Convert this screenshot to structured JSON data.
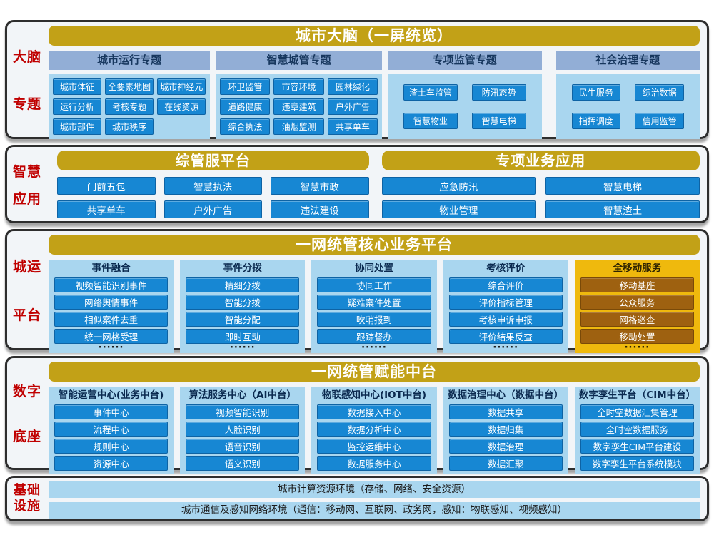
{
  "colors": {
    "gold_bar": "#C2A117",
    "gold_panel": "#EFB90D",
    "chip_blue": "#1787D3",
    "chip_brown": "#9E6110",
    "panel_light_blue": "#A9D6EF",
    "header_steel_blue": "#92AED6",
    "navy_text": "#17375E",
    "red_label": "#C00000",
    "section_bg": "#F2F5F8",
    "section_border": "#2E2E2E"
  },
  "brain": {
    "label": [
      "大脑",
      "专题"
    ],
    "title": "城市大脑（一屏统览）",
    "groups": [
      {
        "header": "城市运行专题",
        "items": [
          "城市体征",
          "全要素地图",
          "城市神经元",
          "运行分析",
          "考核专题",
          "在线资源",
          "城市部件",
          "城市秩序"
        ]
      },
      {
        "header": "智慧城管专题",
        "items": [
          "环卫监管",
          "市容环境",
          "园林绿化",
          "道路健康",
          "违章建筑",
          "户外广告",
          "综合执法",
          "油烟监测",
          "共享单车"
        ]
      },
      {
        "header": "专项监管专题",
        "items": [
          "渣土车监管",
          "防汛态势",
          "智慧物业",
          "智慧电梯"
        ]
      },
      {
        "header": "社会治理专题",
        "items": [
          "民生服务",
          "综治数据",
          "指挥调度",
          "信用监管"
        ]
      }
    ]
  },
  "apps": {
    "label": [
      "智慧",
      "应用"
    ],
    "left": {
      "title": "综管服平台",
      "items": [
        "门前五包",
        "智慧执法",
        "智慧市政",
        "共享单车",
        "户外广告",
        "违法建设"
      ]
    },
    "right": {
      "title": "专项业务应用",
      "items": [
        "应急防汛",
        "智慧电梯",
        "物业管理",
        "智慧渣土"
      ]
    }
  },
  "platform": {
    "label": [
      "城运",
      "平台"
    ],
    "title": "一网统管核心业务平台",
    "columns": [
      {
        "title": "事件融合",
        "items": [
          "视频智能识别事件",
          "网络舆情事件",
          "相似案件去重",
          "统一网格受理"
        ],
        "dots": "······"
      },
      {
        "title": "事件分拨",
        "items": [
          "精细分拨",
          "智能分拨",
          "智能分配",
          "即时互动"
        ],
        "dots": "······"
      },
      {
        "title": "协同处置",
        "items": [
          "协同工作",
          "疑难案件处置",
          "吹哨报到",
          "跟踪督办"
        ],
        "dots": "······"
      },
      {
        "title": "考核评价",
        "items": [
          "综合评价",
          "评价指标管理",
          "考核申诉申报",
          "评价结果反查"
        ],
        "dots": "······"
      },
      {
        "title": "全移动服务",
        "items": [
          "移动基座",
          "公众服务",
          "网格巡查",
          "移动处置"
        ],
        "dots": "······"
      }
    ]
  },
  "base": {
    "label": [
      "数字",
      "底座"
    ],
    "title": "一网统管赋能中台",
    "columns": [
      {
        "title": "智能运营中心(业务中台)",
        "items": [
          "事件中心",
          "流程中心",
          "规则中心",
          "资源中心"
        ]
      },
      {
        "title": "算法服务中心（AI中台）",
        "items": [
          "视频智能识别",
          "人脸识别",
          "语音识别",
          "语义识别"
        ]
      },
      {
        "title": "物联感知中心(IOT中台)",
        "items": [
          "数据接入中心",
          "数据分析中心",
          "监控运维中心",
          "数据服务中心"
        ]
      },
      {
        "title": "数据治理中心（数据中台）",
        "items": [
          "数据共享",
          "数据归集",
          "数据治理",
          "数据汇聚"
        ]
      },
      {
        "title": "数字孪生平台（CIM中台）",
        "items": [
          "全时空数据汇集管理",
          "全时空数据服务",
          "数字孪生CIM平台建设",
          "数字孪生平台系统模块"
        ]
      }
    ]
  },
  "infra": {
    "label": [
      "基础",
      "设施"
    ],
    "rows": [
      "城市计算资源环境（存储、网络、安全资源）",
      "城市通信及感知网络环境（通信：移动网、互联网、政务网，感知：物联感知、视频感知）"
    ]
  }
}
